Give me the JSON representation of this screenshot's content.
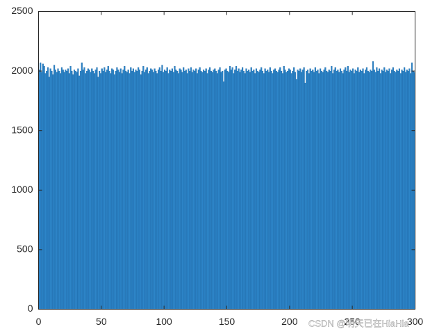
{
  "chart_data": {
    "type": "histogram",
    "bins": [
      0,
      1,
      2,
      3,
      4,
      5,
      6,
      7,
      8,
      9,
      10,
      11,
      12,
      13,
      14,
      15,
      16,
      17,
      18,
      19,
      20,
      21,
      22,
      23,
      24,
      25,
      26,
      27,
      28,
      29,
      30,
      31,
      32,
      33,
      34,
      35,
      36,
      37,
      38,
      39,
      40,
      41,
      42,
      43,
      44,
      45,
      46,
      47,
      48,
      49,
      50,
      51,
      52,
      53,
      54,
      55,
      56,
      57,
      58,
      59,
      60,
      61,
      62,
      63,
      64,
      65,
      66,
      67,
      68,
      69,
      70,
      71,
      72,
      73,
      74,
      75,
      76,
      77,
      78,
      79,
      80,
      81,
      82,
      83,
      84,
      85,
      86,
      87,
      88,
      89,
      90,
      91,
      92,
      93,
      94,
      95,
      96,
      97,
      98,
      99,
      100,
      101,
      102,
      103,
      104,
      105,
      106,
      107,
      108,
      109,
      110,
      111,
      112,
      113,
      114,
      115,
      116,
      117,
      118,
      119,
      120,
      121,
      122,
      123,
      124,
      125,
      126,
      127,
      128,
      129,
      130,
      131,
      132,
      133,
      134,
      135,
      136,
      137,
      138,
      139,
      140,
      141,
      142,
      143,
      144,
      145,
      146,
      147,
      148,
      149,
      150,
      151,
      152,
      153,
      154,
      155,
      156,
      157,
      158,
      159,
      160,
      161,
      162,
      163,
      164,
      165,
      166,
      167,
      168,
      169,
      170,
      171,
      172,
      173,
      174,
      175,
      176,
      177,
      178,
      179,
      180,
      181,
      182,
      183,
      184,
      185,
      186,
      187,
      188,
      189,
      190,
      191,
      192,
      193,
      194,
      195,
      196,
      197,
      198,
      199,
      200,
      201,
      202,
      203,
      204,
      205,
      206,
      207,
      208,
      209,
      210,
      211,
      212,
      213,
      214,
      215,
      216,
      217,
      218,
      219,
      220,
      221,
      222,
      223,
      224,
      225,
      226,
      227,
      228,
      229,
      230,
      231,
      232,
      233,
      234,
      235,
      236,
      237,
      238,
      239,
      240,
      241,
      242,
      243,
      244,
      245,
      246,
      247,
      248,
      249,
      250,
      251,
      252,
      253,
      254,
      255,
      256,
      257,
      258,
      259,
      260,
      261,
      262,
      263,
      264,
      265,
      266,
      267,
      268,
      269,
      270,
      271,
      272,
      273,
      274,
      275,
      276,
      277,
      278,
      279,
      280,
      281,
      282,
      283,
      284,
      285,
      286,
      287,
      288,
      289,
      290,
      291,
      292,
      293,
      294,
      295,
      296,
      297,
      298,
      299,
      300
    ],
    "values": [
      2010,
      2070,
      1990,
      2060,
      2040,
      1980,
      2000,
      2030,
      1950,
      2020,
      2000,
      1970,
      2050,
      2010,
      1990,
      2020,
      2000,
      1980,
      2030,
      2010,
      1990,
      2010,
      2000,
      2020,
      1980,
      2040,
      2000,
      1970,
      2010,
      2000,
      1990,
      2020,
      1960,
      2000,
      2070,
      2010,
      2030,
      1980,
      2000,
      2020,
      2010,
      1990,
      2020,
      2000,
      1980,
      2010,
      2030,
      1950,
      2000,
      1980,
      2020,
      2000,
      2030,
      1990,
      2010,
      2040,
      2000,
      1980,
      2020,
      2010,
      1970,
      2000,
      2030,
      2010,
      1990,
      2020,
      1980,
      2010,
      2040,
      2000,
      1990,
      2010,
      1980,
      2030,
      2000,
      2020,
      1990,
      2010,
      2000,
      2030,
      2010,
      1970,
      2000,
      2040,
      1990,
      2010,
      2030,
      1980,
      2000,
      2020,
      2010,
      1990,
      2020,
      2000,
      1980,
      2010,
      2030,
      2000,
      2050,
      1990,
      2010,
      2000,
      2030,
      1980,
      2010,
      2000,
      2020,
      1990,
      2040,
      2010,
      2000,
      1980,
      2020,
      2010,
      1990,
      2030,
      2000,
      2010,
      1980,
      2020,
      2000,
      2030,
      1990,
      2010,
      2000,
      2020,
      1980,
      2010,
      2030,
      2000,
      1990,
      2010,
      2000,
      2020,
      1980,
      2010,
      2030,
      2000,
      1990,
      2010,
      2020,
      2000,
      1980,
      2010,
      2030,
      1990,
      2000,
      1910,
      2010,
      2020,
      2000,
      1990,
      2040,
      2010,
      2030,
      1980,
      2010,
      2040,
      2000,
      2020,
      1990,
      2010,
      2030,
      2000,
      1980,
      2020,
      2000,
      2010,
      1990,
      2030,
      2000,
      2010,
      1980,
      2020,
      2000,
      1990,
      2010,
      2030,
      2000,
      1980,
      2020,
      2000,
      2010,
      1990,
      2030,
      2000,
      1980,
      2010,
      2020,
      2000,
      1990,
      2010,
      2030,
      2000,
      1980,
      2040,
      2010,
      1990,
      2000,
      2020,
      2010,
      1980,
      2000,
      2030,
      1990,
      1930,
      2010,
      2000,
      2020,
      1990,
      2010,
      2030,
      1900,
      2000,
      2010,
      1980,
      2020,
      2000,
      2010,
      1990,
      2030,
      2000,
      2010,
      1980,
      2020,
      2000,
      1990,
      2010,
      2030,
      2000,
      1990,
      2010,
      2000,
      2040,
      1980,
      2010,
      2030,
      2000,
      2010,
      1990,
      2020,
      2000,
      1980,
      2010,
      2030,
      2000,
      2040,
      1990,
      2010,
      2000,
      2020,
      1980,
      2010,
      2000,
      2030,
      1990,
      2010,
      2000,
      2020,
      1980,
      2010,
      2030,
      2000,
      1990,
      2010,
      2000,
      2080,
      2010,
      1990,
      2030,
      2000,
      2020,
      1980,
      2010,
      2000,
      2030,
      1990,
      2010,
      2000,
      2020,
      1980,
      2010,
      2030,
      2000,
      1990,
      2010,
      2000,
      2020,
      1980,
      2010,
      2000,
      2030,
      1990,
      2010,
      2000,
      2020,
      1980,
      2070,
      2000,
      1990
    ],
    "color": "#2d85c8",
    "xlim": [
      0,
      300
    ],
    "xticks": [
      0,
      50,
      100,
      150,
      200,
      250,
      300
    ],
    "ylim": [
      0,
      2500
    ],
    "yticks": [
      0,
      500,
      1000,
      1500,
      2000,
      2500
    ],
    "watermark": "CSDN @明天已在HiaHia"
  }
}
